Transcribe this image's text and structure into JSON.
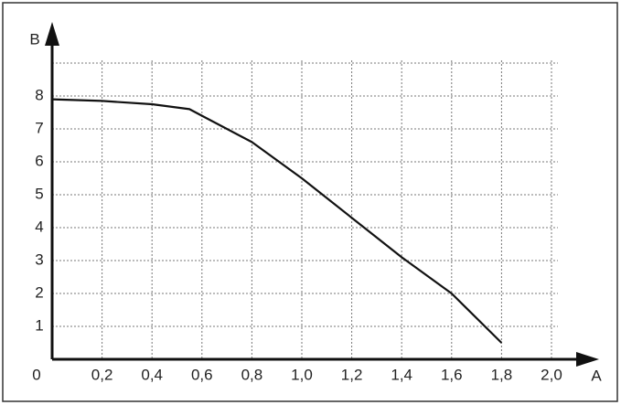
{
  "chart_data": {
    "type": "line",
    "x_label": "A",
    "y_label": "B",
    "x": [
      0,
      0.2,
      0.4,
      0.55,
      0.6,
      0.8,
      1.0,
      1.2,
      1.4,
      1.6,
      1.8
    ],
    "series": [
      {
        "name": "B",
        "color": "#111111",
        "values": [
          7.9,
          7.85,
          7.75,
          7.6,
          7.4,
          6.6,
          5.5,
          4.3,
          3.1,
          2.0,
          0.5
        ]
      }
    ],
    "xlim": [
      0,
      2.0
    ],
    "ylim": [
      0,
      9
    ],
    "xticks": [
      0,
      {
        "value": 0.2,
        "label": "0,2"
      },
      {
        "value": 0.4,
        "label": "0,4"
      },
      {
        "value": 0.6,
        "label": "0,6"
      },
      {
        "value": 0.8,
        "label": "0,8"
      },
      {
        "value": 1.0,
        "label": "1,0"
      },
      {
        "value": 1.2,
        "label": "1,2"
      },
      {
        "value": 1.4,
        "label": "1,4"
      },
      {
        "value": 1.6,
        "label": "1,6"
      },
      {
        "value": 1.8,
        "label": "1,8"
      },
      {
        "value": 2.0,
        "label": "2,0"
      }
    ],
    "yticks": [
      1,
      2,
      3,
      4,
      5,
      6,
      7,
      8
    ],
    "grid": true
  }
}
